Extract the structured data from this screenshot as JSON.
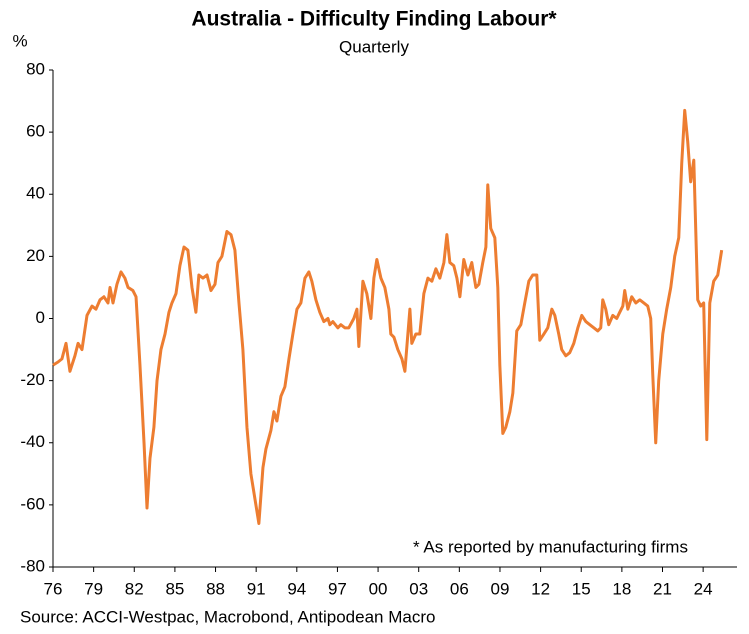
{
  "chart_data": {
    "type": "line",
    "title": "Australia - Difficulty Finding Labour*",
    "subtitle": "Quarterly",
    "y_unit": "%",
    "annotation": "* As reported by manufacturing firms",
    "source": "Source: ACCI-Westpac, Macrobond, Antipodean Macro",
    "color": "#ED7D31",
    "xlim": [
      1976,
      2026.5
    ],
    "ylim": [
      -80,
      80
    ],
    "yticks": [
      -80,
      -60,
      -40,
      -20,
      0,
      20,
      40,
      60,
      80
    ],
    "xticks": [
      {
        "value": 1976,
        "label": "76"
      },
      {
        "value": 1979,
        "label": "79"
      },
      {
        "value": 1982,
        "label": "82"
      },
      {
        "value": 1985,
        "label": "85"
      },
      {
        "value": 1988,
        "label": "88"
      },
      {
        "value": 1991,
        "label": "91"
      },
      {
        "value": 1994,
        "label": "94"
      },
      {
        "value": 1997,
        "label": "97"
      },
      {
        "value": 2000,
        "label": "00"
      },
      {
        "value": 2003,
        "label": "03"
      },
      {
        "value": 2006,
        "label": "06"
      },
      {
        "value": 2009,
        "label": "09"
      },
      {
        "value": 2012,
        "label": "12"
      },
      {
        "value": 2015,
        "label": "15"
      },
      {
        "value": 2018,
        "label": "18"
      },
      {
        "value": 2021,
        "label": "21"
      },
      {
        "value": 2024,
        "label": "24"
      }
    ],
    "x": [
      1976.0,
      1976.37,
      1976.66,
      1976.96,
      1977.25,
      1977.62,
      1977.85,
      1978.14,
      1978.51,
      1978.88,
      1979.17,
      1979.47,
      1979.76,
      1980.06,
      1980.21,
      1980.43,
      1980.72,
      1981.02,
      1981.31,
      1981.54,
      1981.9,
      1982.13,
      1982.42,
      1982.72,
      1982.94,
      1983.16,
      1983.45,
      1983.68,
      1983.97,
      1984.27,
      1984.56,
      1984.78,
      1985.08,
      1985.37,
      1985.67,
      1985.96,
      1986.26,
      1986.55,
      1986.77,
      1987.07,
      1987.37,
      1987.66,
      1987.96,
      1988.18,
      1988.47,
      1988.84,
      1989.14,
      1989.43,
      1989.73,
      1990.02,
      1990.32,
      1990.61,
      1990.98,
      1991.2,
      1991.5,
      1991.72,
      1992.09,
      1992.31,
      1992.53,
      1992.83,
      1993.12,
      1993.42,
      1993.71,
      1994.01,
      1994.3,
      1994.6,
      1994.89,
      1995.11,
      1995.41,
      1995.7,
      1996.0,
      1996.3,
      1996.44,
      1996.66,
      1997.03,
      1997.25,
      1997.55,
      1997.84,
      1998.21,
      1998.44,
      1998.58,
      1998.88,
      1999.17,
      1999.47,
      1999.69,
      1999.91,
      2000.21,
      2000.5,
      2000.8,
      2000.94,
      2001.17,
      2001.46,
      2001.76,
      2001.98,
      2002.2,
      2002.35,
      2002.49,
      2002.79,
      2003.08,
      2003.38,
      2003.68,
      2003.97,
      2004.27,
      2004.56,
      2004.86,
      2005.08,
      2005.3,
      2005.59,
      2005.82,
      2006.04,
      2006.33,
      2006.63,
      2006.92,
      2007.22,
      2007.44,
      2007.73,
      2007.96,
      2008.1,
      2008.32,
      2008.62,
      2008.84,
      2008.99,
      2009.21,
      2009.43,
      2009.73,
      2009.95,
      2010.24,
      2010.54,
      2010.83,
      2011.13,
      2011.42,
      2011.72,
      2011.94,
      2012.24,
      2012.53,
      2012.83,
      2013.05,
      2013.34,
      2013.56,
      2013.86,
      2014.15,
      2014.45,
      2014.75,
      2015.04,
      2015.34,
      2015.63,
      2015.93,
      2016.22,
      2016.44,
      2016.59,
      2016.81,
      2017.03,
      2017.33,
      2017.62,
      2017.84,
      2018.07,
      2018.21,
      2018.44,
      2018.73,
      2019.03,
      2019.32,
      2019.62,
      2019.91,
      2020.13,
      2020.28,
      2020.5,
      2020.72,
      2021.02,
      2021.31,
      2021.61,
      2021.9,
      2022.2,
      2022.42,
      2022.64,
      2022.86,
      2023.08,
      2023.31,
      2023.6,
      2023.82,
      2024.04,
      2024.27,
      2024.49,
      2024.78,
      2025.08,
      2025.37
    ],
    "values": [
      -15,
      -14,
      -13,
      -8,
      -17,
      -12,
      -8,
      -10,
      1,
      4,
      3,
      6,
      7,
      5,
      10,
      5,
      11,
      15,
      13,
      10,
      9,
      7,
      -15,
      -40,
      -61,
      -45,
      -35,
      -20,
      -10,
      -5,
      2,
      5,
      8,
      17,
      23,
      22,
      10,
      2,
      14,
      13,
      14,
      9,
      11,
      18,
      20,
      28,
      27,
      22,
      5,
      -10,
      -35,
      -50,
      -60,
      -66,
      -48,
      -42,
      -36,
      -30,
      -33,
      -25,
      -22,
      -13,
      -5,
      3,
      5,
      13,
      15,
      12,
      6,
      2,
      -1,
      0,
      -2,
      -1,
      -3,
      -2,
      -3,
      -3,
      0,
      3,
      -9,
      12,
      8,
      0,
      13,
      19,
      13,
      10,
      3,
      -5,
      -6,
      -10,
      -13,
      -17,
      -5,
      3,
      -8,
      -5,
      -5,
      8,
      13,
      12,
      16,
      13,
      18,
      27,
      18,
      17,
      13,
      7,
      19,
      14,
      18,
      10,
      11,
      18,
      23,
      43,
      29,
      26,
      10,
      -15,
      -37,
      -35,
      -30,
      -24,
      -4,
      -2,
      5,
      12,
      14,
      14,
      -7,
      -5,
      -3,
      3,
      1,
      -5,
      -10,
      -12,
      -11,
      -8,
      -3,
      1,
      -1,
      -2,
      -3,
      -4,
      -3,
      6,
      3,
      -2,
      1,
      0,
      2,
      4,
      9,
      3,
      7,
      5,
      6,
      5,
      4,
      0,
      -18,
      -40,
      -20,
      -5,
      3,
      10,
      20,
      26,
      50,
      67,
      57,
      44,
      51,
      6,
      4,
      5,
      -39,
      5,
      12,
      14,
      22
    ]
  }
}
